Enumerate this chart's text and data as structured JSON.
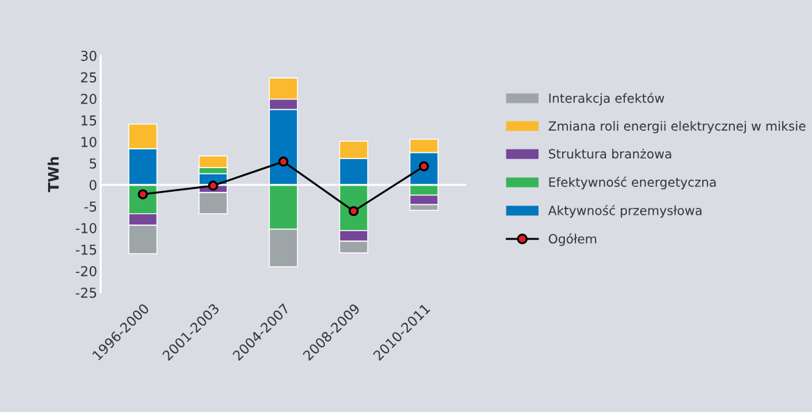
{
  "chart_data": {
    "type": "bar",
    "stacked": true,
    "ylabel": "TWh",
    "categories": [
      "1996-2000",
      "2001-2003",
      "2004-2007",
      "2008-2009",
      "2010-2011"
    ],
    "series": [
      {
        "name": "Aktywność przemysłowa",
        "color": "#0077be",
        "values": [
          8.4,
          2.6,
          17.5,
          6.1,
          7.5
        ]
      },
      {
        "name": "Efektywność energetyczna",
        "color": "#37b457",
        "values": [
          -6.7,
          1.4,
          -10.3,
          -10.6,
          -2.4
        ]
      },
      {
        "name": "Struktura branżowa",
        "color": "#764699",
        "values": [
          -2.7,
          -1.8,
          2.4,
          -2.5,
          -2.2
        ]
      },
      {
        "name": "Zmiana roli energii elektrycznej w miksie",
        "color": "#fbb92d",
        "values": [
          5.7,
          2.7,
          4.9,
          4.0,
          3.1
        ]
      },
      {
        "name": "Interakcja efektów",
        "color": "#9ea5a7",
        "values": [
          -6.6,
          -4.9,
          -8.7,
          -2.7,
          -1.3
        ]
      },
      {
        "name": "Ogółem",
        "type": "line",
        "color": "#000000",
        "marker": "circle",
        "values": [
          -2.2,
          -0.2,
          5.4,
          -6.1,
          4.3
        ]
      }
    ],
    "ylim": [
      -25,
      30
    ],
    "yticks": [
      -25,
      -20,
      -15,
      -10,
      -5,
      0,
      5,
      10,
      15,
      20,
      25,
      30
    ],
    "ref_lines": [
      {
        "axis": "y",
        "value": 0,
        "color": "#ffffff"
      }
    ],
    "grid": false,
    "legend": "right"
  }
}
